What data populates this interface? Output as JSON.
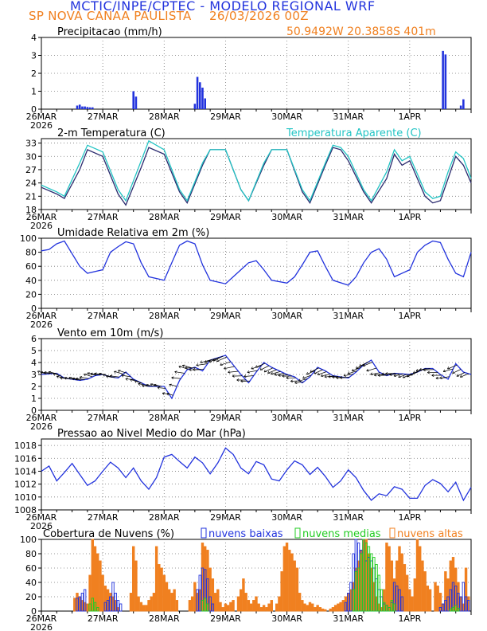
{
  "header": {
    "model_title": "MCTIC/INPE/CPTEC - MODELO REGIONAL WRF",
    "location": "SP NOVA CANAA PAULISTA",
    "run_time": "26/03/2026 00Z",
    "coords": "50.9492W 20.3858S 401m"
  },
  "x_axis": {
    "tick_labels": [
      "26MAR",
      "27MAR",
      "28MAR",
      "29MAR",
      "30MAR",
      "31MAR",
      "1APR"
    ],
    "year_label": "2026",
    "hours_total": 168
  },
  "colors": {
    "blue": "#2233dd",
    "cyan": "#22c4c4",
    "orange": "#f08020",
    "green": "#22cc22",
    "dark_blue": "#2a2a6e",
    "black": "#000000"
  },
  "chart_data": [
    {
      "id": "precip",
      "type": "bar",
      "title": "Precipitacao (mm/h)",
      "ylim": [
        0,
        4
      ],
      "yticks": [
        0,
        1,
        2,
        3,
        4
      ],
      "series": [
        {
          "name": "Precipitacao",
          "hours": [
            14,
            15,
            16,
            17,
            18,
            19,
            20,
            36,
            37,
            60,
            61,
            62,
            63,
            64,
            157,
            158,
            164,
            165
          ],
          "values": [
            0.2,
            0.25,
            0.15,
            0.15,
            0.12,
            0.1,
            0.1,
            1.0,
            0.7,
            0.3,
            1.8,
            1.5,
            1.2,
            0.6,
            3.25,
            3.05,
            0.2,
            0.55
          ]
        }
      ]
    },
    {
      "id": "temp",
      "type": "line",
      "title": "2-m Temperatura (C)",
      "legend": "Temperatura Aparente (C)",
      "ylim": [
        18,
        34
      ],
      "yticks": [
        18,
        21,
        24,
        27,
        30,
        33
      ],
      "series": [
        {
          "name": "2-m Temperatura",
          "hours": [
            0,
            6,
            9,
            15,
            18,
            24,
            30,
            33,
            39,
            42,
            48,
            54,
            57,
            63,
            66,
            72,
            78,
            81,
            87,
            90,
            96,
            102,
            105,
            111,
            114,
            117,
            120,
            126,
            129,
            135,
            138,
            141,
            144,
            150,
            153,
            156,
            159,
            162,
            165,
            168
          ],
          "values": [
            23,
            21.5,
            20.5,
            27,
            31.5,
            30,
            21.5,
            19,
            27.5,
            32,
            30.5,
            22,
            19.5,
            28,
            31.5,
            31.5,
            22.5,
            20,
            28,
            31.5,
            31.5,
            22,
            19.5,
            28,
            32,
            31.5,
            29,
            22,
            19.5,
            25,
            30.5,
            28,
            29,
            21,
            19.5,
            20,
            25,
            30,
            28,
            24
          ]
        },
        {
          "name": "Temperatura Aparente",
          "hours": [
            0,
            6,
            9,
            15,
            18,
            24,
            30,
            33,
            39,
            42,
            48,
            54,
            57,
            63,
            66,
            72,
            78,
            81,
            87,
            90,
            96,
            102,
            105,
            111,
            114,
            117,
            120,
            126,
            129,
            135,
            138,
            141,
            144,
            150,
            153,
            156,
            159,
            162,
            165,
            168
          ],
          "values": [
            23.5,
            22,
            21,
            28.5,
            32.5,
            31,
            22.5,
            20,
            29,
            33.5,
            31.5,
            22.5,
            20,
            28.5,
            31.5,
            31.5,
            22.5,
            20,
            28.5,
            31.5,
            31.5,
            22.5,
            20,
            28.5,
            32.5,
            32,
            30,
            22.5,
            20,
            26.5,
            31.5,
            29,
            30,
            22,
            20.5,
            21,
            26.5,
            31,
            29.5,
            25
          ]
        }
      ]
    },
    {
      "id": "rh",
      "type": "line",
      "title": "Umidade Relativa em 2m (%)",
      "ylim": [
        0,
        100
      ],
      "yticks": [
        0,
        20,
        40,
        60,
        80,
        100
      ],
      "series": [
        {
          "name": "Umidade Relativa",
          "hours": [
            0,
            3,
            6,
            9,
            15,
            18,
            24,
            27,
            30,
            33,
            36,
            39,
            42,
            48,
            51,
            54,
            57,
            60,
            63,
            66,
            72,
            75,
            78,
            81,
            84,
            87,
            90,
            96,
            99,
            102,
            105,
            108,
            111,
            114,
            120,
            123,
            126,
            129,
            132,
            135,
            138,
            144,
            147,
            150,
            153,
            156,
            159,
            162,
            165,
            168
          ],
          "values": [
            82,
            84,
            92,
            96,
            60,
            50,
            55,
            80,
            88,
            95,
            92,
            65,
            45,
            40,
            65,
            90,
            96,
            92,
            62,
            40,
            35,
            45,
            55,
            65,
            68,
            55,
            40,
            36,
            45,
            62,
            80,
            82,
            60,
            40,
            33,
            45,
            65,
            80,
            85,
            70,
            45,
            55,
            80,
            90,
            96,
            94,
            70,
            50,
            45,
            80
          ]
        }
      ]
    },
    {
      "id": "wind",
      "type": "line",
      "title": "Vento em 10m (m/s)",
      "ylim": [
        0,
        6
      ],
      "yticks": [
        0,
        1,
        2,
        3,
        4,
        5,
        6
      ],
      "series": [
        {
          "name": "Vento 10m",
          "hours": [
            0,
            6,
            9,
            15,
            18,
            21,
            24,
            27,
            30,
            33,
            36,
            39,
            42,
            48,
            51,
            54,
            57,
            60,
            63,
            66,
            72,
            75,
            78,
            81,
            84,
            87,
            90,
            96,
            99,
            102,
            105,
            108,
            111,
            114,
            120,
            123,
            126,
            129,
            132,
            135,
            138,
            144,
            147,
            150,
            153,
            156,
            159,
            162,
            165,
            168
          ],
          "values": [
            3,
            3.1,
            2.7,
            2.5,
            2.6,
            2.9,
            3.0,
            2.8,
            2.7,
            3.2,
            2.6,
            2.3,
            2.0,
            2.0,
            1.0,
            2.5,
            3.4,
            3.6,
            3.3,
            4.2,
            4.6,
            3.8,
            3.0,
            2.3,
            3.2,
            4.0,
            3.6,
            3.0,
            2.8,
            2.3,
            2.8,
            3.6,
            3.3,
            2.9,
            2.7,
            3.2,
            3.8,
            4.2,
            3.2,
            2.9,
            3.1,
            3.0,
            3.2,
            3.5,
            3.5,
            3.0,
            2.6,
            3.9,
            3.2,
            3.0
          ]
        }
      ]
    },
    {
      "id": "press",
      "type": "line",
      "title": "Pressao ao Nivel Medio do Mar (hPa)",
      "ylim": [
        1008,
        1019
      ],
      "yticks": [
        1008,
        1010,
        1012,
        1014,
        1016,
        1018
      ],
      "series": [
        {
          "name": "Pressao",
          "hours": [
            0,
            3,
            6,
            9,
            12,
            15,
            18,
            21,
            24,
            27,
            30,
            33,
            36,
            39,
            42,
            45,
            48,
            51,
            54,
            57,
            60,
            63,
            66,
            69,
            72,
            75,
            78,
            81,
            84,
            87,
            90,
            93,
            96,
            99,
            102,
            105,
            108,
            111,
            114,
            117,
            120,
            123,
            126,
            129,
            132,
            135,
            138,
            141,
            144,
            147,
            150,
            153,
            156,
            159,
            162,
            165,
            168
          ],
          "values": [
            1014,
            1014.8,
            1012.5,
            1013.8,
            1015.2,
            1013.5,
            1011.8,
            1012.5,
            1014,
            1015.4,
            1014.5,
            1013,
            1014.5,
            1012.5,
            1011.2,
            1013,
            1016.2,
            1016.6,
            1015.5,
            1014.5,
            1016.2,
            1015.3,
            1013.6,
            1015.3,
            1017.6,
            1016.6,
            1014.5,
            1013.6,
            1015.5,
            1015,
            1012.8,
            1012.5,
            1014.2,
            1015.6,
            1015,
            1013.5,
            1014.6,
            1013.2,
            1011.5,
            1012.5,
            1014.2,
            1013,
            1011,
            1009.5,
            1010.5,
            1010.2,
            1011.6,
            1011.2,
            1009.8,
            1009.8,
            1011.8,
            1012.7,
            1012.1,
            1010.8,
            1012.3,
            1009.5,
            1011.5
          ]
        }
      ]
    },
    {
      "id": "clouds",
      "type": "bar",
      "title": "Cobertura de Nuvens (%)",
      "legend": [
        "nuvens baixas",
        "nuvens medias",
        "nuvens altas"
      ],
      "ylim": [
        0,
        100
      ],
      "yticks": [
        0,
        20,
        40,
        60,
        80,
        100
      ],
      "series": [
        {
          "name": "nuvens altas",
          "hours": [
            13,
            14,
            15,
            16,
            17,
            18,
            19,
            20,
            21,
            22,
            23,
            24,
            25,
            26,
            27,
            28,
            29,
            30,
            35,
            36,
            37,
            38,
            39,
            40,
            41,
            42,
            43,
            44,
            45,
            46,
            47,
            48,
            49,
            50,
            51,
            52,
            53,
            58,
            59,
            60,
            61,
            62,
            63,
            64,
            65,
            66,
            67,
            68,
            69,
            70,
            71,
            72,
            73,
            74,
            75,
            77,
            78,
            79,
            80,
            81,
            82,
            83,
            84,
            85,
            86,
            87,
            88,
            89,
            90,
            92,
            93,
            94,
            95,
            96,
            97,
            98,
            99,
            100,
            101,
            102,
            103,
            104,
            105,
            106,
            107,
            108,
            109,
            110,
            111,
            113,
            114,
            115,
            116,
            117,
            118,
            119,
            120,
            121,
            122,
            123,
            124,
            125,
            126,
            127,
            128,
            129,
            130,
            131,
            132,
            133,
            134,
            135,
            136,
            137,
            138,
            139,
            140,
            141,
            142,
            143,
            144,
            145,
            146,
            147,
            148,
            149,
            150,
            151,
            152,
            154,
            155,
            156,
            157,
            158,
            159,
            160,
            161,
            162,
            163,
            164,
            165,
            166,
            167
          ],
          "values": [
            18,
            25,
            20,
            15,
            12,
            10,
            50,
            100,
            90,
            80,
            70,
            50,
            35,
            30,
            25,
            20,
            15,
            5,
            25,
            90,
            70,
            20,
            12,
            8,
            8,
            15,
            20,
            25,
            90,
            65,
            60,
            50,
            40,
            30,
            25,
            30,
            15,
            15,
            20,
            40,
            25,
            30,
            95,
            90,
            85,
            60,
            45,
            25,
            30,
            12,
            5,
            10,
            8,
            12,
            15,
            20,
            30,
            45,
            25,
            15,
            10,
            15,
            20,
            10,
            5,
            8,
            5,
            10,
            15,
            10,
            20,
            55,
            90,
            95,
            85,
            80,
            70,
            60,
            25,
            15,
            10,
            8,
            12,
            10,
            5,
            8,
            5,
            3,
            2,
            3,
            5,
            8,
            10,
            12,
            15,
            20,
            25,
            30,
            40,
            60,
            70,
            85,
            100,
            100,
            80,
            60,
            40,
            20,
            10,
            5,
            30,
            95,
            90,
            70,
            45,
            70,
            90,
            80,
            65,
            50,
            30,
            20,
            45,
            100,
            90,
            70,
            55,
            35,
            30,
            40,
            35,
            25,
            10,
            55,
            45,
            70,
            75,
            60,
            40,
            20,
            10,
            60,
            20
          ]
        },
        {
          "name": "nuvens baixas",
          "hours": [
            14,
            15,
            16,
            17,
            25,
            26,
            27,
            28,
            29,
            30,
            31,
            61,
            62,
            63,
            64,
            65,
            66,
            67,
            119,
            120,
            121,
            122,
            123,
            124,
            125,
            126,
            127,
            128,
            129,
            130,
            131,
            132,
            133,
            134,
            135,
            136,
            137,
            138,
            139,
            140,
            141,
            156,
            157,
            158,
            159,
            160,
            161,
            162,
            163,
            164,
            165,
            166,
            167
          ],
          "values": [
            18,
            20,
            25,
            30,
            12,
            15,
            20,
            40,
            25,
            15,
            10,
            30,
            50,
            60,
            58,
            45,
            20,
            10,
            12,
            25,
            40,
            80,
            100,
            95,
            85,
            100,
            70,
            75,
            70,
            60,
            45,
            30,
            20,
            10,
            8,
            5,
            12,
            40,
            35,
            30,
            20,
            5,
            10,
            15,
            20,
            30,
            40,
            35,
            25,
            20,
            40,
            20,
            15
          ]
        },
        {
          "name": "nuvens medias",
          "hours": [
            19,
            20,
            21,
            22,
            63,
            64,
            65,
            122,
            123,
            124,
            125,
            126,
            127,
            128,
            129,
            130,
            131,
            132,
            133,
            134,
            135,
            136,
            137,
            138,
            160,
            161,
            162,
            163
          ],
          "values": [
            10,
            18,
            12,
            5,
            15,
            18,
            10,
            30,
            55,
            60,
            80,
            100,
            95,
            90,
            80,
            75,
            65,
            50,
            30,
            12,
            8,
            5,
            15,
            10,
            3,
            5,
            8,
            4
          ]
        }
      ]
    }
  ]
}
